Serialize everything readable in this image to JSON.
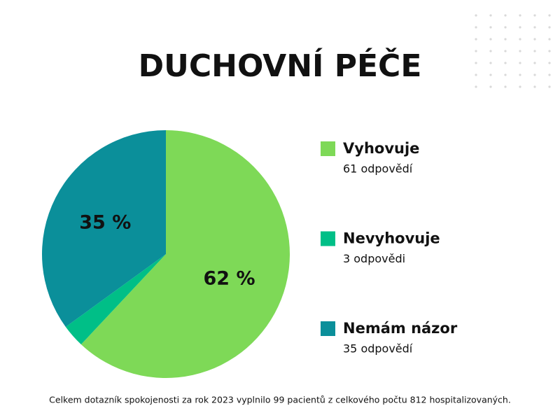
{
  "chart_data": {
    "type": "pie",
    "title": "DUCHOVNÍ PÉČE",
    "categories": [
      "Vyhovuje",
      "Nevyhovuje",
      "Nemám názor"
    ],
    "values": [
      62,
      3,
      35
    ],
    "value_labels": [
      "62 %",
      null,
      "35 %"
    ],
    "colors": [
      "#7ed957",
      "#00bf87",
      "#0b8f9a"
    ],
    "legend_details": [
      "61 odpovědí",
      "3 odpovědi",
      "35 odpovědí"
    ],
    "footnote": "Celkem dotazník spokojenosti za rok  2023 vyplnilo 99 pacientů z celkového počtu 812 hospitalizovaných."
  }
}
